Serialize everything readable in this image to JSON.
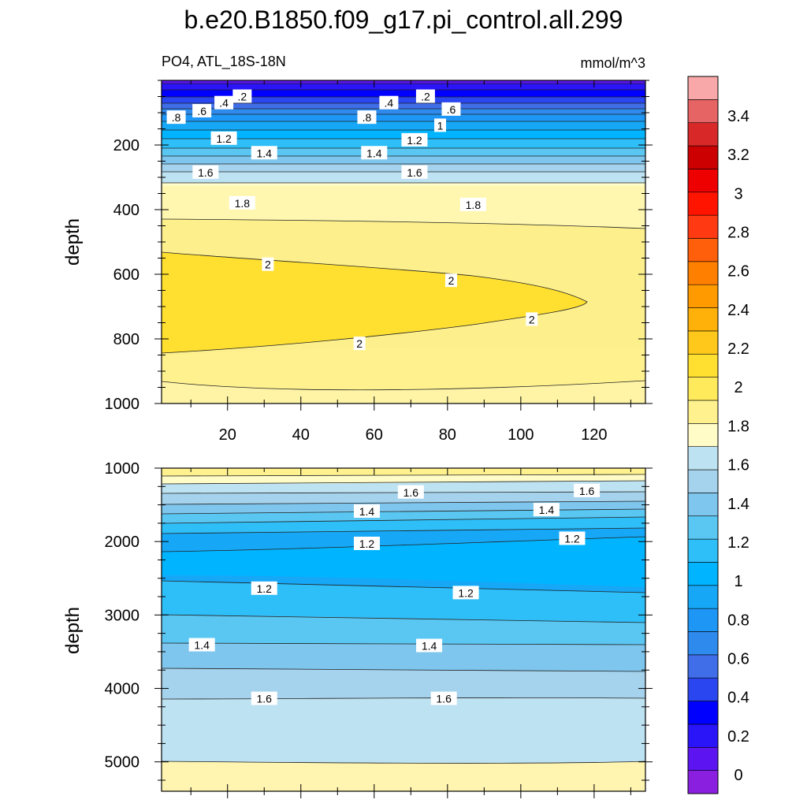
{
  "chart_data": {
    "type": "contour",
    "title": "b.e20.B1850.f09_g17.pi_control.all.299",
    "subtitle_left": "PO4, ATL_18S-18N",
    "subtitle_right": "mmol/m^3",
    "panels": [
      {
        "id": "upper",
        "ylabel": "depth",
        "ylim": [
          0,
          1000
        ],
        "xlim": [
          2,
          134
        ],
        "xticks": [
          20,
          40,
          60,
          80,
          100,
          120
        ],
        "xtick_labels": [
          "20",
          "40",
          "60",
          "80",
          "100",
          "120"
        ],
        "yticks": [
          200,
          400,
          600,
          800,
          1000
        ],
        "ytick_labels": [
          "200",
          "400",
          "600",
          "800",
          "1000"
        ],
        "y_inverted": true,
        "contour_labels": [
          {
            "text": ".2",
            "x": 24,
            "y": 50
          },
          {
            "text": ".2",
            "x": 74,
            "y": 50
          },
          {
            "text": ".4",
            "x": 19,
            "y": 70
          },
          {
            "text": ".4",
            "x": 64,
            "y": 70
          },
          {
            "text": ".6",
            "x": 13,
            "y": 95
          },
          {
            "text": ".6",
            "x": 81,
            "y": 90
          },
          {
            "text": ".8",
            "x": 6,
            "y": 115
          },
          {
            "text": ".8",
            "x": 58,
            "y": 115
          },
          {
            "text": "1",
            "x": 78,
            "y": 140
          },
          {
            "text": "1.2",
            "x": 19,
            "y": 180
          },
          {
            "text": "1.2",
            "x": 71,
            "y": 185
          },
          {
            "text": "1.4",
            "x": 30,
            "y": 225
          },
          {
            "text": "1.4",
            "x": 60,
            "y": 225
          },
          {
            "text": "1.6",
            "x": 14,
            "y": 285
          },
          {
            "text": "1.6",
            "x": 71,
            "y": 285
          },
          {
            "text": "1.8",
            "x": 24,
            "y": 380
          },
          {
            "text": "1.8",
            "x": 87,
            "y": 385
          },
          {
            "text": "2",
            "x": 31,
            "y": 570
          },
          {
            "text": "2",
            "x": 81,
            "y": 620
          },
          {
            "text": "2",
            "x": 103,
            "y": 740
          },
          {
            "text": "2",
            "x": 56,
            "y": 815
          }
        ]
      },
      {
        "id": "lower",
        "ylabel": "depth",
        "ylim": [
          1000,
          5400
        ],
        "xlim": [
          2,
          134
        ],
        "xticks": [
          20,
          40,
          60,
          80,
          100,
          120
        ],
        "yticks": [
          1000,
          2000,
          3000,
          4000,
          5000
        ],
        "ytick_labels": [
          "1000",
          "2000",
          "3000",
          "4000",
          "5000"
        ],
        "y_inverted": true,
        "contour_labels": [
          {
            "text": "1.6",
            "x": 70,
            "y": 1330
          },
          {
            "text": "1.6",
            "x": 118,
            "y": 1310
          },
          {
            "text": "1.4",
            "x": 58,
            "y": 1590
          },
          {
            "text": "1.4",
            "x": 107,
            "y": 1570
          },
          {
            "text": "1.2",
            "x": 58,
            "y": 2030
          },
          {
            "text": "1.2",
            "x": 114,
            "y": 1960
          },
          {
            "text": "1.2",
            "x": 30,
            "y": 2640
          },
          {
            "text": "1.2",
            "x": 85,
            "y": 2700
          },
          {
            "text": "1.4",
            "x": 13,
            "y": 3410
          },
          {
            "text": "1.4",
            "x": 75,
            "y": 3420
          },
          {
            "text": "1.6",
            "x": 30,
            "y": 4140
          },
          {
            "text": "1.6",
            "x": 79,
            "y": 4140
          }
        ]
      }
    ],
    "colorbar": {
      "labels": [
        "0",
        "0.2",
        "0.4",
        "0.6",
        "0.8",
        "1",
        "1.2",
        "1.4",
        "1.6",
        "1.8",
        "2",
        "2.2",
        "2.4",
        "2.6",
        "2.8",
        "3",
        "3.2",
        "3.4"
      ],
      "colors": [
        "#8a1fe0",
        "#5c14f0",
        "#2a14f8",
        "#0000ff",
        "#2a46f0",
        "#3f6ee8",
        "#2f8aed",
        "#1e96f5",
        "#16a8f6",
        "#00b4ff",
        "#2ebef8",
        "#5ac7f2",
        "#7ec6ee",
        "#a5d2ec",
        "#bde2f1",
        "#fffcc8",
        "#fff28e",
        "#ffea5c",
        "#ffdf30",
        "#ffc81a",
        "#ffb10a",
        "#ff9a00",
        "#ff7f00",
        "#ff5f0a",
        "#ff3a12",
        "#ff1400",
        "#ee0000",
        "#cc0000",
        "#d82828",
        "#e66464",
        "#f8a8a8"
      ]
    }
  }
}
